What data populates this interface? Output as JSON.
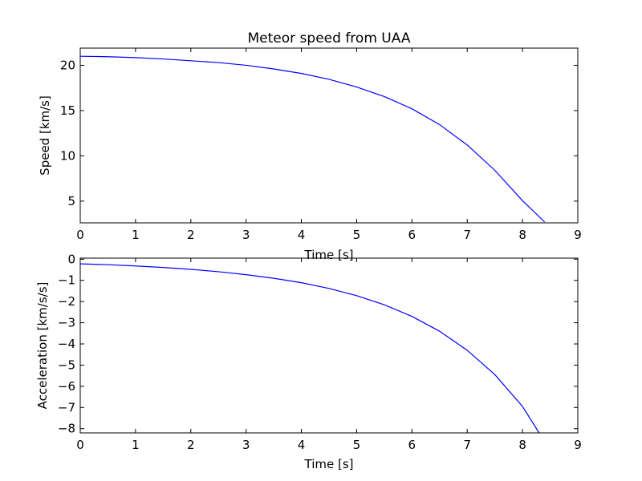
{
  "chart_data": [
    {
      "type": "line",
      "title": "Meteor speed from  UAA",
      "xlabel": "Time [s]",
      "ylabel": "Speed [km/s]",
      "xlim": [
        0,
        9
      ],
      "ylim": [
        2.6,
        21.9
      ],
      "xticks": [
        0,
        1,
        2,
        3,
        4,
        5,
        6,
        7,
        8,
        9
      ],
      "yticks": [
        5,
        10,
        15,
        20
      ],
      "grid": false,
      "colors": {
        "line": "#0000ff",
        "axes": "#000000"
      },
      "series": [
        {
          "x": [
            0,
            0.5,
            1,
            1.5,
            2,
            2.5,
            3,
            3.5,
            4,
            4.5,
            5,
            5.5,
            6,
            6.5,
            7,
            7.5,
            8,
            8.4
          ],
          "y": [
            21.0,
            20.95,
            20.85,
            20.7,
            20.5,
            20.3,
            20.0,
            19.6,
            19.1,
            18.45,
            17.6,
            16.55,
            15.2,
            13.45,
            11.2,
            8.4,
            5.05,
            2.7
          ]
        }
      ]
    },
    {
      "type": "line",
      "title": "",
      "xlabel": "Time [s]",
      "ylabel": "Acceleration [km/s/s]",
      "xlim": [
        0,
        9
      ],
      "ylim": [
        -8.2,
        0.05
      ],
      "xticks": [
        0,
        1,
        2,
        3,
        4,
        5,
        6,
        7,
        8,
        9
      ],
      "yticks": [
        0,
        -1,
        -2,
        -3,
        -4,
        -5,
        -6,
        -7,
        -8
      ],
      "grid": false,
      "colors": {
        "line": "#0000ff",
        "axes": "#000000"
      },
      "series": [
        {
          "x": [
            0,
            0.5,
            1,
            1.5,
            2,
            2.5,
            3,
            3.5,
            4,
            4.5,
            5,
            5.5,
            6,
            6.5,
            7,
            7.5,
            8,
            8.3
          ],
          "y": [
            -0.22,
            -0.26,
            -0.32,
            -0.39,
            -0.48,
            -0.59,
            -0.73,
            -0.9,
            -1.11,
            -1.38,
            -1.72,
            -2.15,
            -2.7,
            -3.4,
            -4.3,
            -5.45,
            -6.95,
            -8.2
          ]
        }
      ]
    }
  ]
}
